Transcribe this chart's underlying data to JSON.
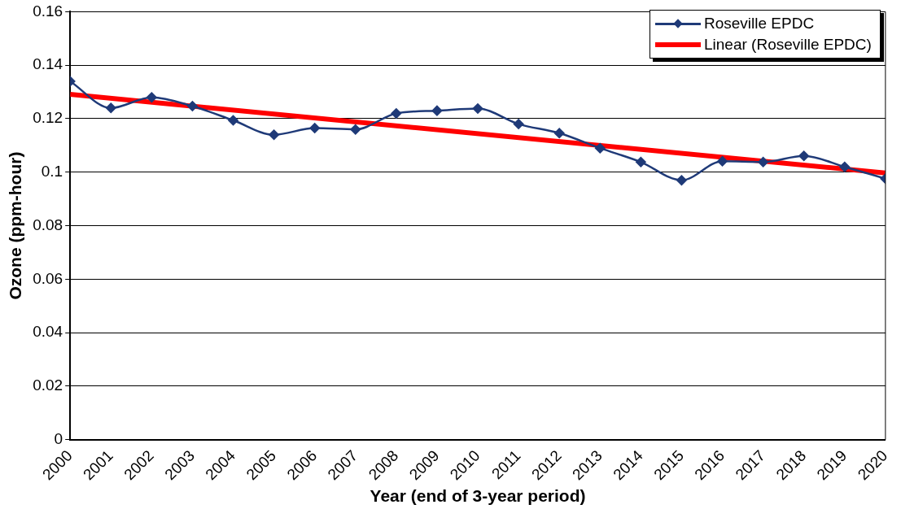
{
  "chart_data": {
    "type": "line",
    "xlabel": "Year (end of 3-year period)",
    "ylabel": "Ozone (ppm-hour)",
    "x": [
      2000,
      2001,
      2002,
      2003,
      2004,
      2005,
      2006,
      2007,
      2008,
      2009,
      2010,
      2011,
      2012,
      2013,
      2014,
      2015,
      2016,
      2017,
      2018,
      2019,
      2020
    ],
    "series": [
      {
        "name": "Roseville EPDC",
        "color": "#1f3a78",
        "marker": "diamond",
        "values": [
          0.134,
          0.124,
          0.128,
          0.1247,
          0.1194,
          0.114,
          0.1165,
          0.116,
          0.122,
          0.123,
          0.1238,
          0.118,
          0.1146,
          0.109,
          0.1038,
          0.097,
          0.1041,
          0.1038,
          0.1061,
          0.102,
          0.0976
        ]
      },
      {
        "name": "Linear (Roseville EPDC)",
        "color": "#ff0000",
        "type": "line",
        "marker": "none",
        "x": [
          2000,
          2020
        ],
        "values": [
          0.1291,
          0.0997
        ]
      }
    ],
    "xlim": [
      2000,
      2020
    ],
    "xticks": [
      2000,
      2001,
      2002,
      2003,
      2004,
      2005,
      2006,
      2007,
      2008,
      2009,
      2010,
      2011,
      2012,
      2013,
      2014,
      2015,
      2016,
      2017,
      2018,
      2019,
      2020
    ],
    "ylim": [
      0,
      0.16
    ],
    "yticks": [
      0,
      0.02,
      0.04,
      0.06,
      0.08,
      0.1,
      0.12,
      0.14,
      0.16
    ],
    "grid": "y",
    "legend": "top right"
  }
}
